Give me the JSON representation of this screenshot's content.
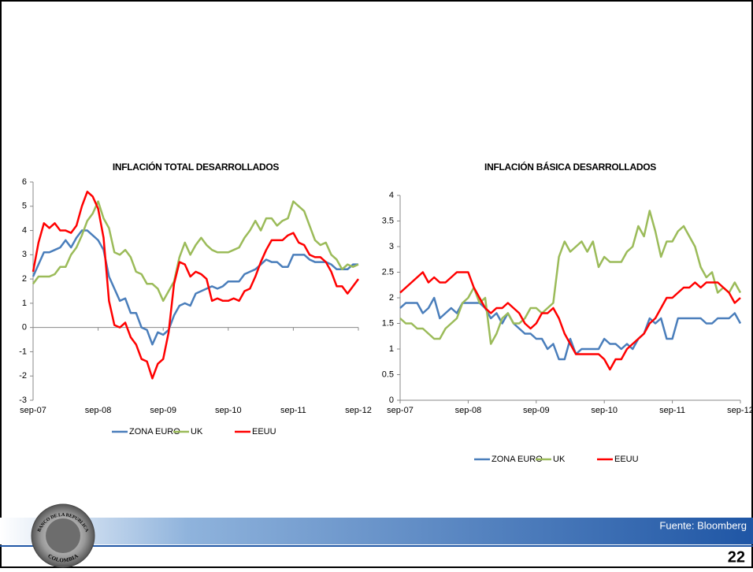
{
  "chart_data": [
    {
      "type": "line",
      "title": "INFLACIÓN TOTAL DESARROLLADOS",
      "categories": [
        "sep-07",
        null,
        null,
        null,
        null,
        null,
        null,
        null,
        null,
        null,
        null,
        null,
        "sep-08",
        null,
        null,
        null,
        null,
        null,
        null,
        null,
        null,
        null,
        null,
        null,
        "sep-09",
        null,
        null,
        null,
        null,
        null,
        null,
        null,
        null,
        null,
        null,
        null,
        "sep-10",
        null,
        null,
        null,
        null,
        null,
        null,
        null,
        null,
        null,
        null,
        null,
        "sep-11",
        null,
        null,
        null,
        null,
        null,
        null,
        null,
        null,
        null,
        null,
        null,
        "sep-12"
      ],
      "ylim": [
        -3,
        6
      ],
      "yticks": [
        -3,
        -2,
        -1,
        0,
        1,
        2,
        3,
        4,
        5,
        6
      ],
      "series": [
        {
          "name": "ZONA EURO",
          "color": "#4a7ebb",
          "values": [
            2.1,
            2.6,
            3.1,
            3.1,
            3.2,
            3.3,
            3.6,
            3.3,
            3.7,
            4.0,
            4.0,
            3.8,
            3.6,
            3.2,
            2.1,
            1.6,
            1.1,
            1.2,
            0.6,
            0.6,
            0.0,
            -0.1,
            -0.7,
            -0.2,
            -0.3,
            -0.1,
            0.5,
            0.9,
            1.0,
            0.9,
            1.4,
            1.5,
            1.6,
            1.7,
            1.6,
            1.7,
            1.9,
            1.9,
            1.9,
            2.2,
            2.3,
            2.4,
            2.6,
            2.8,
            2.7,
            2.7,
            2.5,
            2.5,
            3.0,
            3.0,
            3.0,
            2.8,
            2.7,
            2.7,
            2.7,
            2.6,
            2.4,
            2.4,
            2.4,
            2.6,
            2.6
          ]
        },
        {
          "name": "UK",
          "color": "#9bbb59",
          "values": [
            1.8,
            2.1,
            2.1,
            2.1,
            2.2,
            2.5,
            2.5,
            3.0,
            3.3,
            3.8,
            4.4,
            4.7,
            5.2,
            4.5,
            4.1,
            3.1,
            3.0,
            3.2,
            2.9,
            2.3,
            2.2,
            1.8,
            1.8,
            1.6,
            1.1,
            1.5,
            1.9,
            2.9,
            3.5,
            3.0,
            3.4,
            3.7,
            3.4,
            3.2,
            3.1,
            3.1,
            3.1,
            3.2,
            3.3,
            3.7,
            4.0,
            4.4,
            4.0,
            4.5,
            4.5,
            4.2,
            4.4,
            4.5,
            5.2,
            5.0,
            4.8,
            4.2,
            3.6,
            3.4,
            3.5,
            3.0,
            2.8,
            2.4,
            2.6,
            2.5,
            2.6
          ]
        },
        {
          "name": "EEUU",
          "color": "#ff0000",
          "values": [
            2.3,
            3.5,
            4.3,
            4.1,
            4.3,
            4.0,
            4.0,
            3.9,
            4.2,
            5.0,
            5.6,
            5.4,
            4.9,
            3.7,
            1.1,
            0.1,
            0.0,
            0.2,
            -0.4,
            -0.7,
            -1.3,
            -1.4,
            -2.1,
            -1.5,
            -1.3,
            -0.2,
            1.8,
            2.7,
            2.6,
            2.1,
            2.3,
            2.2,
            2.0,
            1.1,
            1.2,
            1.1,
            1.1,
            1.2,
            1.1,
            1.5,
            1.6,
            2.1,
            2.7,
            3.2,
            3.6,
            3.6,
            3.6,
            3.8,
            3.9,
            3.5,
            3.4,
            3.0,
            2.9,
            2.9,
            2.7,
            2.3,
            1.7,
            1.7,
            1.4,
            1.7,
            2.0
          ]
        }
      ]
    },
    {
      "type": "line",
      "title": "INFLACIÓN BÁSICA DESARROLLADOS",
      "categories": [
        "sep-07",
        null,
        null,
        null,
        null,
        null,
        null,
        null,
        null,
        null,
        null,
        null,
        "sep-08",
        null,
        null,
        null,
        null,
        null,
        null,
        null,
        null,
        null,
        null,
        null,
        "sep-09",
        null,
        null,
        null,
        null,
        null,
        null,
        null,
        null,
        null,
        null,
        null,
        "sep-10",
        null,
        null,
        null,
        null,
        null,
        null,
        null,
        null,
        null,
        null,
        null,
        "sep-11",
        null,
        null,
        null,
        null,
        null,
        null,
        null,
        null,
        null,
        null,
        null,
        "sep-12"
      ],
      "ylim": [
        0,
        4
      ],
      "yticks": [
        0,
        0.5,
        1,
        1.5,
        2,
        2.5,
        3,
        3.5,
        4
      ],
      "series": [
        {
          "name": "ZONA EURO",
          "color": "#4a7ebb",
          "values": [
            1.8,
            1.9,
            1.9,
            1.9,
            1.7,
            1.8,
            2.0,
            1.6,
            1.7,
            1.8,
            1.7,
            1.9,
            1.9,
            1.9,
            1.9,
            1.8,
            1.6,
            1.7,
            1.5,
            1.7,
            1.5,
            1.4,
            1.3,
            1.3,
            1.2,
            1.2,
            1.0,
            1.1,
            0.8,
            0.8,
            1.2,
            0.9,
            1.0,
            1.0,
            1.0,
            1.0,
            1.2,
            1.1,
            1.1,
            1.0,
            1.1,
            1.0,
            1.2,
            1.3,
            1.6,
            1.5,
            1.6,
            1.2,
            1.2,
            1.6,
            1.6,
            1.6,
            1.6,
            1.6,
            1.5,
            1.5,
            1.6,
            1.6,
            1.6,
            1.7,
            1.5
          ]
        },
        {
          "name": "UK",
          "color": "#9bbb59",
          "values": [
            1.6,
            1.5,
            1.5,
            1.4,
            1.4,
            1.3,
            1.2,
            1.2,
            1.4,
            1.5,
            1.6,
            1.9,
            2.0,
            2.2,
            1.9,
            2.0,
            1.1,
            1.3,
            1.6,
            1.7,
            1.5,
            1.5,
            1.6,
            1.8,
            1.8,
            1.7,
            1.8,
            1.9,
            2.8,
            3.1,
            2.9,
            3.0,
            3.1,
            2.9,
            3.1,
            2.6,
            2.8,
            2.7,
            2.7,
            2.7,
            2.9,
            3.0,
            3.4,
            3.2,
            3.7,
            3.3,
            2.8,
            3.1,
            3.1,
            3.3,
            3.4,
            3.2,
            3.0,
            2.6,
            2.4,
            2.5,
            2.1,
            2.2,
            2.1,
            2.3,
            2.1
          ]
        },
        {
          "name": "EEUU",
          "color": "#ff0000",
          "values": [
            2.1,
            2.2,
            2.3,
            2.4,
            2.5,
            2.3,
            2.4,
            2.3,
            2.3,
            2.4,
            2.5,
            2.5,
            2.5,
            2.2,
            2.0,
            1.8,
            1.7,
            1.8,
            1.8,
            1.9,
            1.8,
            1.7,
            1.5,
            1.4,
            1.5,
            1.7,
            1.7,
            1.8,
            1.6,
            1.3,
            1.1,
            0.9,
            0.9,
            0.9,
            0.9,
            0.9,
            0.8,
            0.6,
            0.8,
            0.8,
            1.0,
            1.1,
            1.2,
            1.3,
            1.5,
            1.6,
            1.8,
            2.0,
            2.0,
            2.1,
            2.2,
            2.2,
            2.3,
            2.2,
            2.3,
            2.3,
            2.3,
            2.2,
            2.1,
            1.9,
            2.0
          ]
        }
      ]
    }
  ],
  "source": "Fuente: Bloomberg",
  "page_number": "22",
  "logo": {
    "top": "BANCO DE LA REPUBLICA",
    "bottom": "COLOMBIA"
  }
}
